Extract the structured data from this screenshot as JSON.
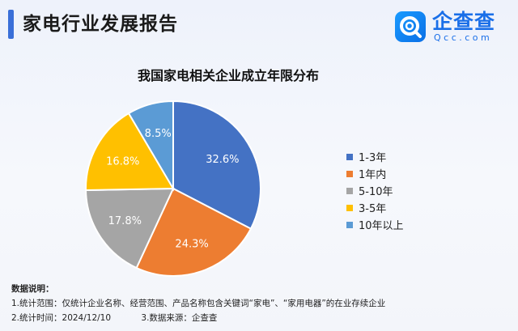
{
  "header": {
    "title": "家电行业发展报告",
    "logo_text": "企查查",
    "logo_sub": "Qcc.com"
  },
  "chart_data": {
    "type": "pie",
    "title": "我国家电相关企业成立年限分布",
    "slices": [
      {
        "label": "1-3年",
        "value": 32.6,
        "display": "32.6%",
        "color": "#4472c4"
      },
      {
        "label": "1年内",
        "value": 24.3,
        "display": "24.3%",
        "color": "#ed7d31"
      },
      {
        "label": "5-10年",
        "value": 17.8,
        "display": "17.8%",
        "color": "#a5a5a5"
      },
      {
        "label": "3-5年",
        "value": 16.8,
        "display": "16.8%",
        "color": "#ffc000"
      },
      {
        "label": "10年以上",
        "value": 8.5,
        "display": "8.5%",
        "color": "#5b9bd5"
      }
    ],
    "legend_position": "right"
  },
  "notes": {
    "heading": "数据说明：",
    "line1": "1.统计范围：仅统计企业名称、经营范围、产品名称包含关键词“家电”、“家用电器”的在业存续企业",
    "stat_time": "2.统计时间：2024/12/10",
    "source": "3.数据来源：企查查"
  }
}
